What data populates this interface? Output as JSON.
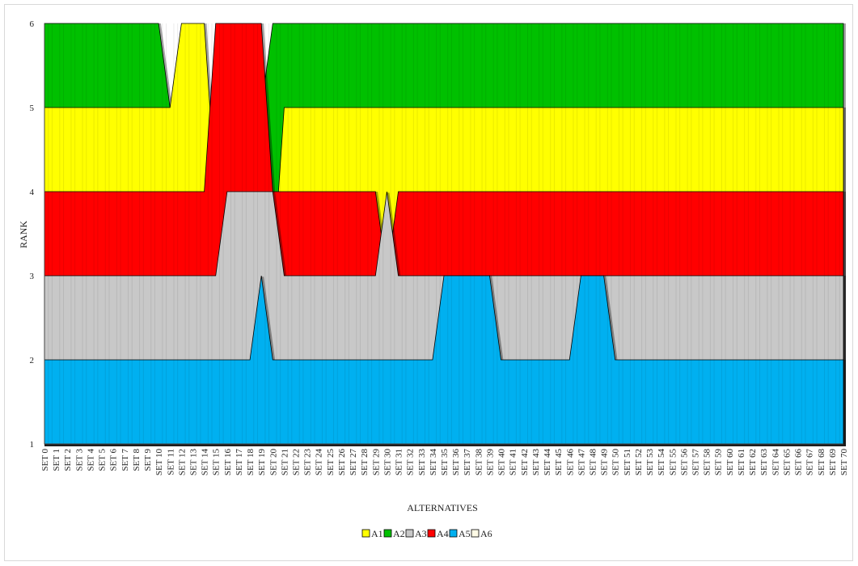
{
  "chart_data": {
    "type": "area",
    "xlabel": "ALTERNATIVES",
    "ylabel": "RANK",
    "ylim": [
      1,
      6
    ],
    "yticks": [
      "1",
      "2",
      "3",
      "4",
      "5",
      "6"
    ],
    "categories": [
      "SET 0",
      "SET 1",
      "SET 2",
      "SET 3",
      "SET 4",
      "SET 5",
      "SET 6",
      "SET 7",
      "SET 8",
      "SET 9",
      "SET 10",
      "SET 11",
      "SET 12",
      "SET 13",
      "SET 14",
      "SET 15",
      "SET 16",
      "SET 17",
      "SET 18",
      "SET 19",
      "SET 20",
      "SET 21",
      "SET 22",
      "SET 23",
      "SET 24",
      "SET 25",
      "SET 26",
      "SET 27",
      "SET 28",
      "SET 29",
      "SET 30",
      "SET 31",
      "SET 32",
      "SET 33",
      "SET 34",
      "SET 35",
      "SET 36",
      "SET 37",
      "SET 38",
      "SET 39",
      "SET 40",
      "SET 41",
      "SET 42",
      "SET 43",
      "SET 44",
      "SET 45",
      "SET 46",
      "SET 47",
      "SET 48",
      "SET 49",
      "SET 50",
      "SET 51",
      "SET 52",
      "SET 53",
      "SET 54",
      "SET 55",
      "SET 56",
      "SET 57",
      "SET 58",
      "SET 59",
      "SET 60",
      "SET 61",
      "SET 62",
      "SET 63",
      "SET 64",
      "SET 65",
      "SET 66",
      "SET 67",
      "SET 68",
      "SET 69",
      "SET 70"
    ],
    "series": [
      {
        "name": "A1",
        "color": "#ffff00",
        "values": [
          5,
          5,
          5,
          5,
          5,
          5,
          5,
          5,
          5,
          5,
          5,
          5,
          6,
          6,
          6,
          4,
          3,
          3,
          3,
          3,
          3,
          5,
          5,
          5,
          5,
          5,
          5,
          5,
          5,
          5,
          5,
          5,
          5,
          5,
          5,
          5,
          5,
          5,
          5,
          5,
          5,
          5,
          5,
          5,
          5,
          5,
          5,
          5,
          5,
          5,
          5,
          5,
          5,
          5,
          5,
          5,
          5,
          5,
          5,
          5,
          5,
          5,
          5,
          5,
          5,
          5,
          5,
          5,
          5,
          5,
          5
        ]
      },
      {
        "name": "A2",
        "color": "#00c000",
        "values": [
          6,
          6,
          6,
          6,
          6,
          6,
          6,
          6,
          6,
          6,
          6,
          5,
          5,
          5,
          4,
          5,
          5,
          5,
          5,
          5,
          6,
          6,
          6,
          6,
          6,
          6,
          6,
          6,
          6,
          6,
          6,
          6,
          6,
          6,
          6,
          6,
          6,
          6,
          6,
          6,
          6,
          6,
          6,
          6,
          6,
          6,
          6,
          6,
          6,
          6,
          6,
          6,
          6,
          6,
          6,
          6,
          6,
          6,
          6,
          6,
          6,
          6,
          6,
          6,
          6,
          6,
          6,
          6,
          6,
          6,
          6
        ]
      },
      {
        "name": "A3",
        "color": "#c8c8c8",
        "values": [
          3,
          3,
          3,
          3,
          3,
          3,
          3,
          3,
          3,
          3,
          3,
          3,
          3,
          3,
          3,
          3,
          4,
          4,
          4,
          4,
          4,
          3,
          3,
          3,
          3,
          3,
          3,
          3,
          3,
          3,
          4,
          3,
          3,
          3,
          3,
          3,
          3,
          3,
          3,
          3,
          3,
          3,
          3,
          3,
          3,
          3,
          3,
          3,
          3,
          3,
          3,
          3,
          3,
          3,
          3,
          3,
          3,
          3,
          3,
          3,
          3,
          3,
          3,
          3,
          3,
          3,
          3,
          3,
          3,
          3,
          3
        ]
      },
      {
        "name": "A4",
        "color": "#ff0000",
        "values": [
          4,
          4,
          4,
          4,
          4,
          4,
          4,
          4,
          4,
          4,
          4,
          4,
          4,
          4,
          4,
          6,
          6,
          6,
          6,
          6,
          4,
          4,
          4,
          4,
          4,
          4,
          4,
          4,
          4,
          4,
          3,
          4,
          4,
          4,
          4,
          4,
          4,
          4,
          4,
          4,
          4,
          4,
          4,
          4,
          4,
          4,
          4,
          4,
          4,
          4,
          4,
          4,
          4,
          4,
          4,
          4,
          4,
          4,
          4,
          4,
          4,
          4,
          4,
          4,
          4,
          4,
          4,
          4,
          4,
          4,
          4
        ]
      },
      {
        "name": "A5",
        "color": "#00b0f0",
        "values": [
          2,
          2,
          2,
          2,
          2,
          2,
          2,
          2,
          2,
          2,
          2,
          2,
          2,
          2,
          2,
          2,
          2,
          2,
          2,
          3,
          2,
          2,
          2,
          2,
          2,
          2,
          2,
          2,
          2,
          2,
          2,
          2,
          2,
          2,
          2,
          3,
          3,
          3,
          3,
          3,
          2,
          2,
          2,
          2,
          2,
          2,
          2,
          3,
          3,
          3,
          2,
          2,
          2,
          2,
          2,
          2,
          2,
          2,
          2,
          2,
          2,
          2,
          2,
          2,
          2,
          2,
          2,
          2,
          2,
          2,
          2
        ]
      },
      {
        "name": "A6",
        "color": "#fffbe6",
        "values": [
          1,
          1,
          1,
          1,
          1,
          1,
          1,
          1,
          1,
          1,
          1,
          1,
          1,
          1,
          1,
          1,
          1,
          1,
          1,
          1,
          1,
          1,
          1,
          1,
          1,
          1,
          1,
          1,
          1,
          1,
          1,
          1,
          1,
          1,
          1,
          1,
          1,
          1,
          1,
          1,
          1,
          1,
          1,
          1,
          1,
          1,
          1,
          1,
          1,
          1,
          1,
          1,
          1,
          1,
          1,
          1,
          1,
          1,
          1,
          1,
          1,
          1,
          1,
          1,
          1,
          1,
          1,
          1,
          1,
          1,
          1
        ]
      }
    ],
    "draw_order": [
      "A2",
      "A1",
      "A4",
      "A3",
      "A5"
    ],
    "grid": false,
    "legend_position": "bottom"
  }
}
